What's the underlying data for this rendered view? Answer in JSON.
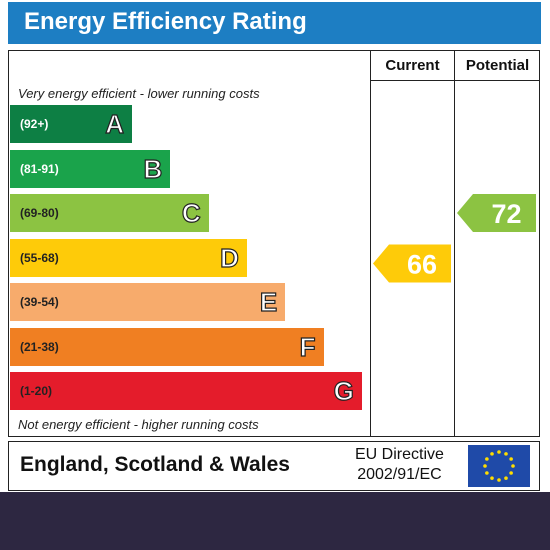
{
  "title": "Energy Efficiency Rating",
  "columns": {
    "current": "Current",
    "potential": "Potential"
  },
  "notes": {
    "top": "Very energy efficient - lower running costs",
    "bottom": "Not energy efficient - higher running costs"
  },
  "chart_data": {
    "type": "bar",
    "title": "Energy Efficiency Rating",
    "bands": [
      {
        "letter": "A",
        "range": "(92+)",
        "min": 92,
        "color": "#0d7f44",
        "range_color": "#ffffff"
      },
      {
        "letter": "B",
        "range": "(81-91)",
        "min": 81,
        "color": "#1aa34b",
        "range_color": "#ffffff"
      },
      {
        "letter": "C",
        "range": "(69-80)",
        "min": 69,
        "color": "#8cc342",
        "range_color": "#222222"
      },
      {
        "letter": "D",
        "range": "(55-68)",
        "min": 55,
        "color": "#fecb09",
        "range_color": "#222222"
      },
      {
        "letter": "E",
        "range": "(39-54)",
        "min": 39,
        "color": "#f7ab6c",
        "range_color": "#222222"
      },
      {
        "letter": "F",
        "range": "(21-38)",
        "min": 21,
        "color": "#f07f22",
        "range_color": "#222222"
      },
      {
        "letter": "G",
        "range": "(1-20)",
        "min": 1,
        "color": "#e41c2b",
        "range_color": "#222222"
      }
    ],
    "current": {
      "value": 66,
      "band": "D",
      "color": "#fecb09"
    },
    "potential": {
      "value": 72,
      "band": "C",
      "color": "#8cc342"
    }
  },
  "footer": {
    "region": "England, Scotland & Wales",
    "directive_line1": "EU Directive",
    "directive_line2": "2002/91/EC"
  }
}
